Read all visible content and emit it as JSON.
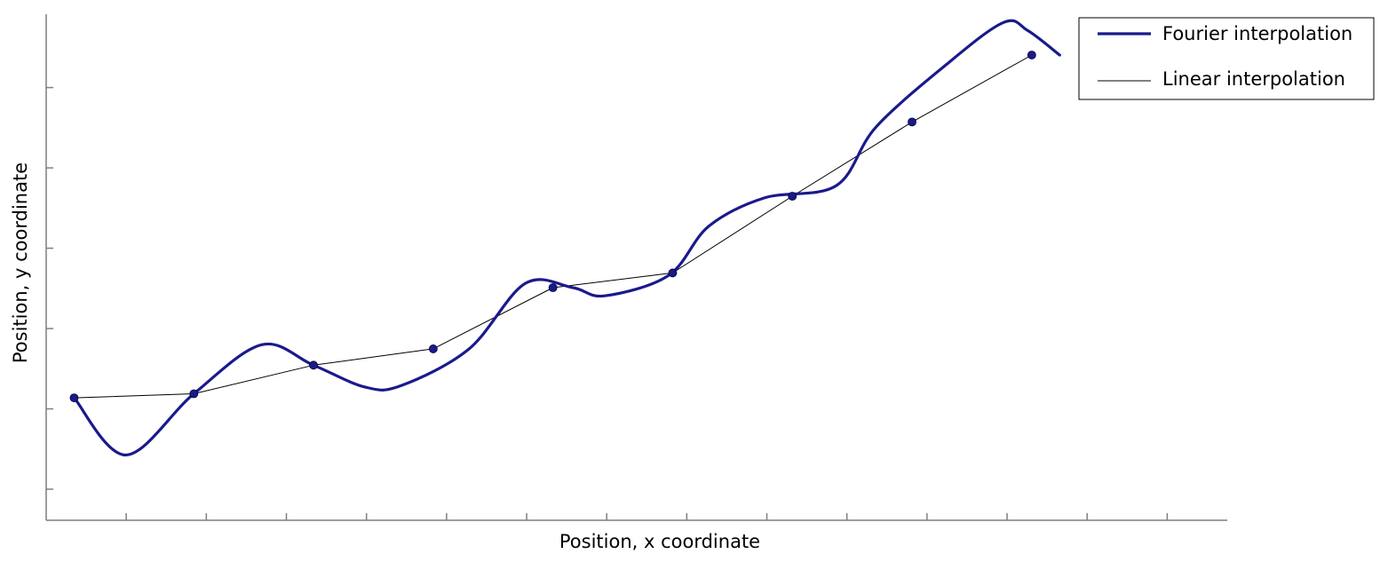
{
  "chart_data": {
    "type": "line",
    "xlabel": "Position, x coordinate",
    "ylabel": "Position, y coordinate",
    "xlim": [
      0,
      14.8
    ],
    "ylim": [
      -1.5,
      4.7
    ],
    "legend_position": "top-right",
    "grid": false,
    "x_tick_count": 14,
    "y_tick_count": 6,
    "colors": {
      "fourier": "#1a1a8c",
      "linear": "#000000",
      "points": "#1a1a8c",
      "axis": "#7f7f7f"
    },
    "series": [
      {
        "name": "Fourier interpolation",
        "style": "thick",
        "x": [
          0.35,
          1.0,
          1.85,
          2.7,
          3.35,
          4.0,
          4.45,
          5.3,
          6.0,
          6.6,
          7.0,
          7.8,
          8.3,
          9.0,
          9.9,
          10.4,
          11.3,
          12.0,
          12.3,
          12.7
        ],
        "y": [
          0,
          -0.7,
          0.05,
          0.65,
          0.4,
          0.13,
          0.15,
          0.6,
          1.4,
          1.35,
          1.25,
          1.5,
          2.1,
          2.45,
          2.6,
          3.32,
          4.1,
          4.6,
          4.5,
          4.2
        ]
      },
      {
        "name": "Linear interpolation",
        "style": "thin",
        "x": [
          0.35,
          1.85,
          3.35,
          4.85,
          6.35,
          7.85,
          9.35,
          10.85,
          12.35
        ],
        "y": [
          0,
          0.05,
          0.4,
          0.6,
          1.35,
          1.53,
          2.47,
          3.38,
          4.2
        ]
      }
    ],
    "points": {
      "x": [
        0.35,
        1.85,
        3.35,
        4.85,
        6.35,
        7.85,
        9.35,
        10.85,
        12.35
      ],
      "y": [
        0,
        0.05,
        0.4,
        0.6,
        1.35,
        1.53,
        2.47,
        3.38,
        4.2
      ]
    }
  }
}
